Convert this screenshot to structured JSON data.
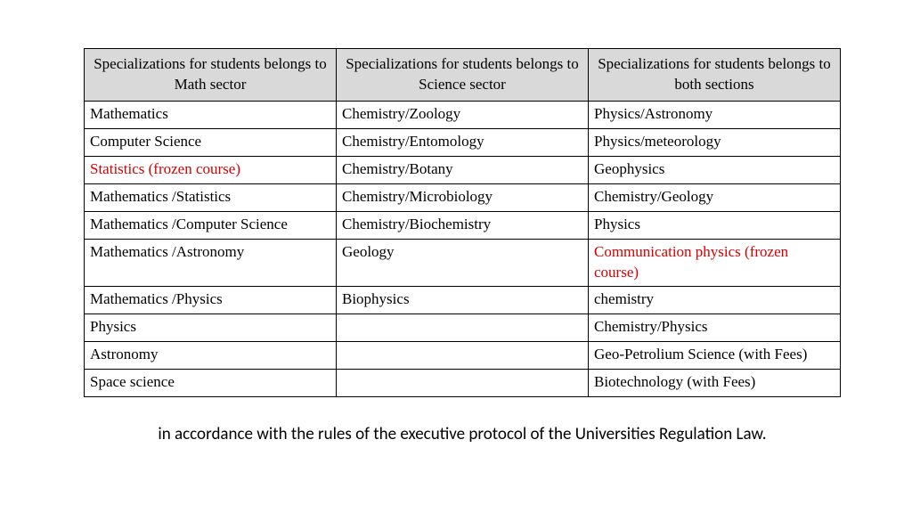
{
  "table": {
    "header_bg": "#d9d9d9",
    "border_color": "#000000",
    "font_family": "Times New Roman",
    "cell_fontsize": 17,
    "frozen_color": "#d60000",
    "columns": [
      "Specializations for students belongs to Math sector",
      "Specializations for students belongs to Science sector",
      "Specializations for students belongs to both sections"
    ],
    "rows": [
      [
        {
          "text": "Mathematics"
        },
        {
          "text": "Chemistry/Zoology"
        },
        {
          "text": "Physics/Astronomy"
        }
      ],
      [
        {
          "text": "Computer Science"
        },
        {
          "text": "Chemistry/Entomology"
        },
        {
          "text": "Physics/meteorology"
        }
      ],
      [
        {
          "text": "Statistics (frozen course)",
          "frozen": true
        },
        {
          "text": "Chemistry/Botany"
        },
        {
          "text": "Geophysics"
        }
      ],
      [
        {
          "text": "Mathematics /Statistics"
        },
        {
          "text": "Chemistry/Microbiology"
        },
        {
          "text": "Chemistry/Geology"
        }
      ],
      [
        {
          "text": "Mathematics /Computer Science"
        },
        {
          "text": "Chemistry/Biochemistry"
        },
        {
          "text": "Physics"
        }
      ],
      [
        {
          "text": "Mathematics /Astronomy"
        },
        {
          "text": "Geology"
        },
        {
          "text": "Communication physics (frozen course)",
          "frozen": true
        }
      ],
      [
        {
          "text": "Mathematics /Physics"
        },
        {
          "text": "Biophysics"
        },
        {
          "text": "chemistry"
        }
      ],
      [
        {
          "text": "Physics"
        },
        {
          "text": ""
        },
        {
          "text": "Chemistry/Physics"
        }
      ],
      [
        {
          "text": "Astronomy"
        },
        {
          "text": ""
        },
        {
          "text": "Geo-Petrolium Science (with Fees)"
        }
      ],
      [
        {
          "text": "Space science"
        },
        {
          "text": ""
        },
        {
          "text": "Biotechnology (with Fees)"
        }
      ]
    ]
  },
  "caption": "in accordance with the rules of the executive protocol of the Universities Regulation Law."
}
